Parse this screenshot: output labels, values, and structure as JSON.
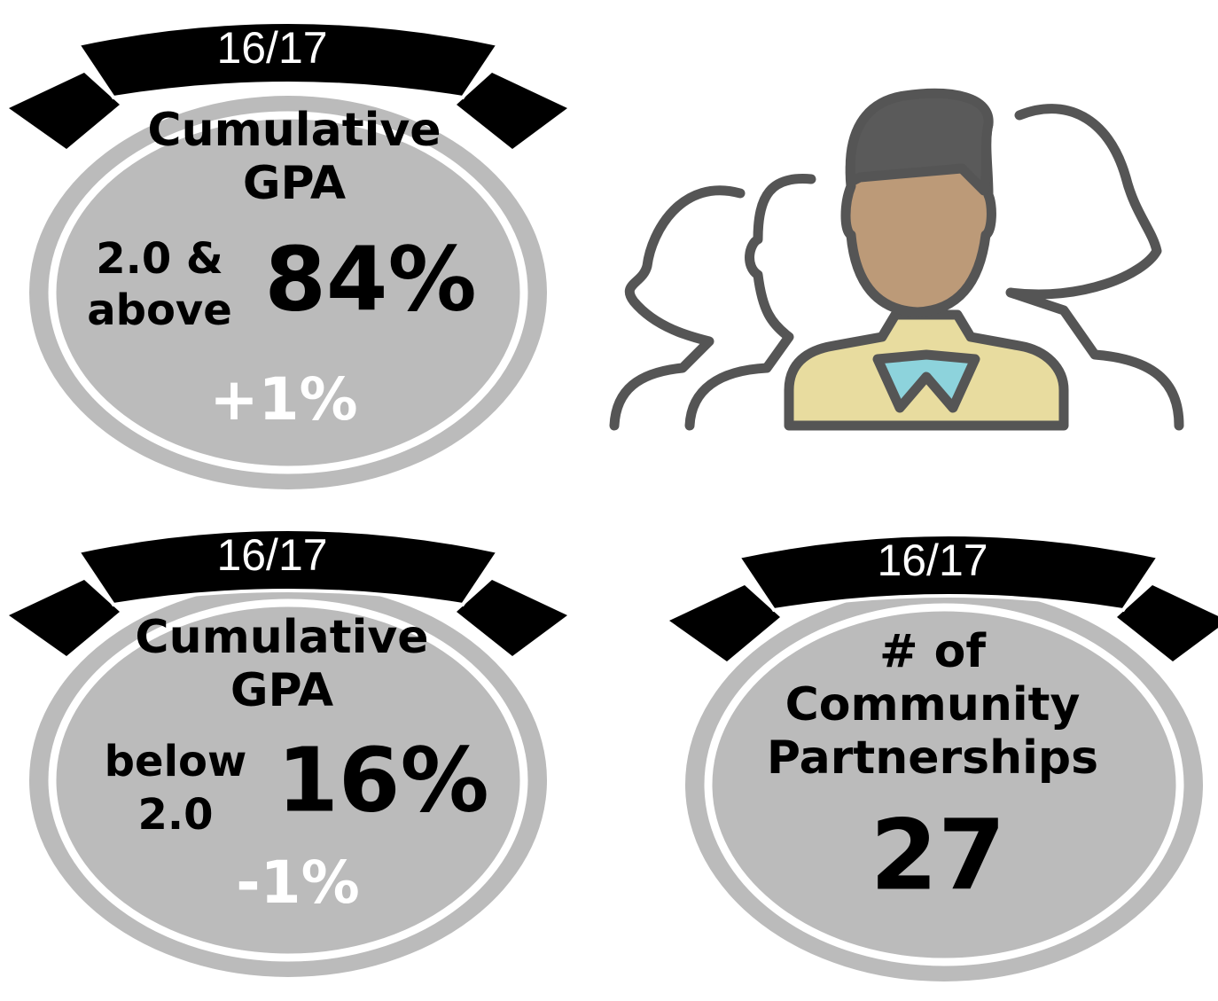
{
  "badges": [
    {
      "year": "16/17",
      "title": [
        "Cumulative",
        "GPA"
      ],
      "label": [
        "2.0 &",
        "above"
      ],
      "value": "84%",
      "change": "+1%"
    },
    {
      "year": "16/17",
      "title": [
        "Cumulative",
        "GPA"
      ],
      "label": [
        "below",
        "2.0"
      ],
      "value": "16%",
      "change": "-1%"
    },
    {
      "year": "16/17",
      "title": [
        "# of",
        "Community",
        "Partnerships"
      ],
      "value": "27"
    }
  ]
}
